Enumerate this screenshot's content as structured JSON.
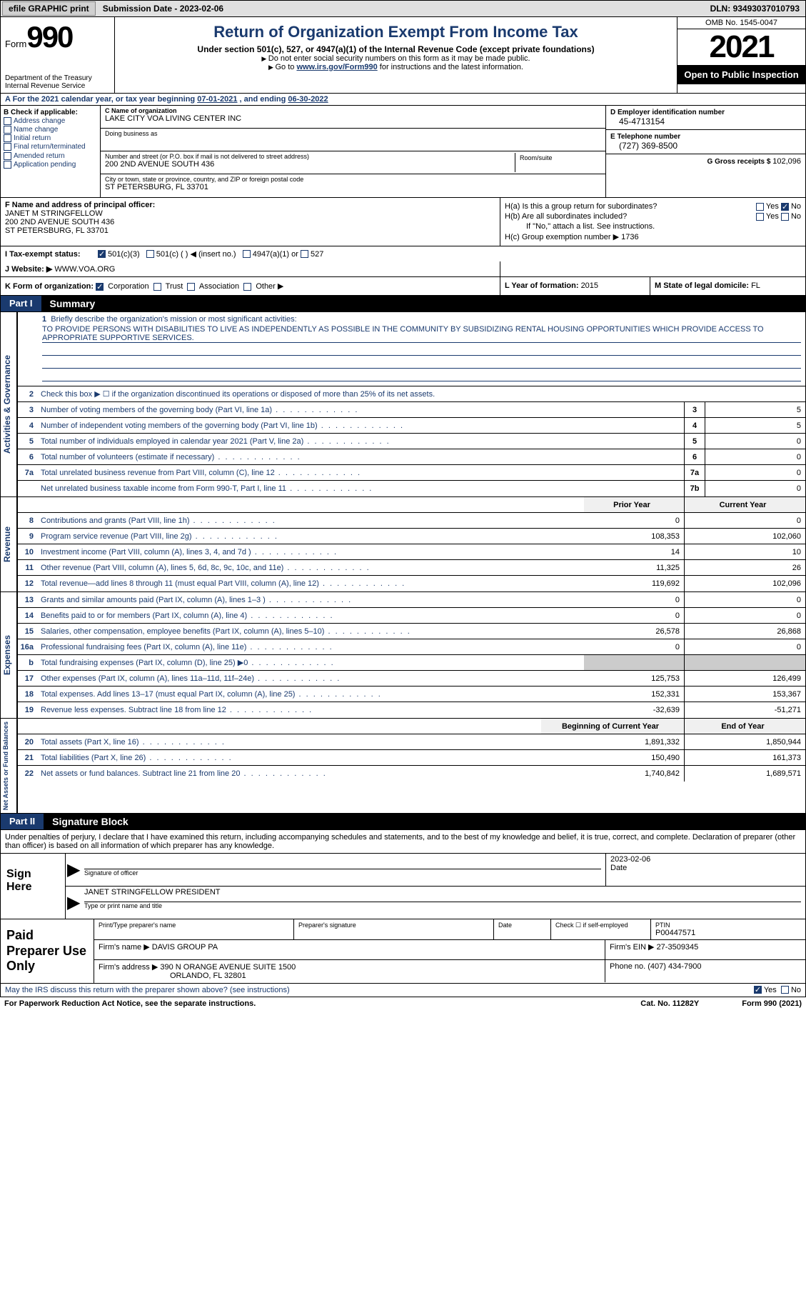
{
  "topbar": {
    "efile": "efile GRAPHIC print",
    "submission_label": "Submission Date - ",
    "submission_date": "2023-02-06",
    "dln_label": "DLN: ",
    "dln": "93493037010793"
  },
  "header": {
    "form_label": "Form",
    "form_num": "990",
    "dept": "Department of the Treasury\nInternal Revenue Service",
    "title": "Return of Organization Exempt From Income Tax",
    "sub1": "Under section 501(c), 527, or 4947(a)(1) of the Internal Revenue Code (except private foundations)",
    "sub2": "Do not enter social security numbers on this form as it may be made public.",
    "sub3_pre": "Go to ",
    "sub3_link": "www.irs.gov/Form990",
    "sub3_post": " for instructions and the latest information.",
    "omb": "OMB No. 1545-0047",
    "year": "2021",
    "open": "Open to Public Inspection"
  },
  "line_a": {
    "text": "A For the 2021 calendar year, or tax year beginning ",
    "begin": "07-01-2021",
    "mid": "   , and ending ",
    "end": "06-30-2022"
  },
  "col_b": {
    "label": "B Check if applicable:",
    "opts": [
      "Address change",
      "Name change",
      "Initial return",
      "Final return/terminated",
      "Amended return",
      "Application pending"
    ]
  },
  "col_c": {
    "name_lbl": "C Name of organization",
    "name": "LAKE CITY VOA LIVING CENTER INC",
    "dba_lbl": "Doing business as",
    "dba": "",
    "addr_lbl": "Number and street (or P.O. box if mail is not delivered to street address)",
    "addr": "200 2ND AVENUE SOUTH 436",
    "room_lbl": "Room/suite",
    "room": "",
    "city_lbl": "City or town, state or province, country, and ZIP or foreign postal code",
    "city": "ST PETERSBURG, FL  33701"
  },
  "col_d": {
    "ein_lbl": "D Employer identification number",
    "ein": "45-4713154",
    "phone_lbl": "E Telephone number",
    "phone": "(727) 369-8500",
    "gross_lbl": "G Gross receipts $ ",
    "gross": "102,096"
  },
  "line_f": {
    "lbl": "F Name and address of principal officer:",
    "name": "JANET M STRINGFELLOW",
    "addr1": "200 2ND AVENUE SOUTH 436",
    "addr2": "ST PETERSBURG, FL  33701"
  },
  "line_h": {
    "ha": "H(a)  Is this a group return for subordinates?",
    "hb": "H(b)  Are all subordinates included?",
    "hb_note": "If \"No,\" attach a list. See instructions.",
    "hc": "H(c)  Group exemption number ▶",
    "hc_val": "1736",
    "yes": "Yes",
    "no": "No"
  },
  "line_i": {
    "lbl": "I   Tax-exempt status:",
    "o1": "501(c)(3)",
    "o2": "501(c) (  ) ◀ (insert no.)",
    "o3": "4947(a)(1) or",
    "o4": "527"
  },
  "line_j": {
    "lbl": "J   Website: ▶",
    "val": "WWW.VOA.ORG"
  },
  "line_k": {
    "lbl": "K Form of organization:",
    "o1": "Corporation",
    "o2": "Trust",
    "o3": "Association",
    "o4": "Other ▶"
  },
  "line_l": {
    "lbl": "L Year of formation: ",
    "val": "2015"
  },
  "line_m": {
    "lbl": "M State of legal domicile: ",
    "val": "FL"
  },
  "part1": {
    "label": "Part I",
    "title": "Summary"
  },
  "summary": {
    "q1_lbl": "Briefly describe the organization's mission or most significant activities:",
    "q1_val": "TO PROVIDE PERSONS WITH DISABILITIES TO LIVE AS INDEPENDENTLY AS POSSIBLE IN THE COMMUNITY BY SUBSIDIZING RENTAL HOUSING OPPORTUNITIES WHICH PROVIDE ACCESS TO APPROPRIATE SUPPORTIVE SERVICES.",
    "q2": "Check this box ▶ ☐  if the organization discontinued its operations or disposed of more than 25% of its net assets.",
    "lines_top": [
      {
        "n": "3",
        "d": "Number of voting members of the governing body (Part VI, line 1a)",
        "b": "3",
        "v": "5"
      },
      {
        "n": "4",
        "d": "Number of independent voting members of the governing body (Part VI, line 1b)",
        "b": "4",
        "v": "5"
      },
      {
        "n": "5",
        "d": "Total number of individuals employed in calendar year 2021 (Part V, line 2a)",
        "b": "5",
        "v": "0"
      },
      {
        "n": "6",
        "d": "Total number of volunteers (estimate if necessary)",
        "b": "6",
        "v": "0"
      },
      {
        "n": "7a",
        "d": "Total unrelated business revenue from Part VIII, column (C), line 12",
        "b": "7a",
        "v": "0"
      },
      {
        "n": "",
        "d": "Net unrelated business taxable income from Form 990-T, Part I, line 11",
        "b": "7b",
        "v": "0"
      }
    ],
    "col_hdr_prior": "Prior Year",
    "col_hdr_curr": "Current Year",
    "revenue": [
      {
        "n": "8",
        "d": "Contributions and grants (Part VIII, line 1h)",
        "p": "0",
        "c": "0"
      },
      {
        "n": "9",
        "d": "Program service revenue (Part VIII, line 2g)",
        "p": "108,353",
        "c": "102,060"
      },
      {
        "n": "10",
        "d": "Investment income (Part VIII, column (A), lines 3, 4, and 7d )",
        "p": "14",
        "c": "10"
      },
      {
        "n": "11",
        "d": "Other revenue (Part VIII, column (A), lines 5, 6d, 8c, 9c, 10c, and 11e)",
        "p": "11,325",
        "c": "26"
      },
      {
        "n": "12",
        "d": "Total revenue—add lines 8 through 11 (must equal Part VIII, column (A), line 12)",
        "p": "119,692",
        "c": "102,096"
      }
    ],
    "expenses": [
      {
        "n": "13",
        "d": "Grants and similar amounts paid (Part IX, column (A), lines 1–3 )",
        "p": "0",
        "c": "0"
      },
      {
        "n": "14",
        "d": "Benefits paid to or for members (Part IX, column (A), line 4)",
        "p": "0",
        "c": "0"
      },
      {
        "n": "15",
        "d": "Salaries, other compensation, employee benefits (Part IX, column (A), lines 5–10)",
        "p": "26,578",
        "c": "26,868"
      },
      {
        "n": "16a",
        "d": "Professional fundraising fees (Part IX, column (A), line 11e)",
        "p": "0",
        "c": "0"
      },
      {
        "n": "b",
        "d": "Total fundraising expenses (Part IX, column (D), line 25) ▶0",
        "p": "",
        "c": "",
        "shaded": true
      },
      {
        "n": "17",
        "d": "Other expenses (Part IX, column (A), lines 11a–11d, 11f–24e)",
        "p": "125,753",
        "c": "126,499"
      },
      {
        "n": "18",
        "d": "Total expenses. Add lines 13–17 (must equal Part IX, column (A), line 25)",
        "p": "152,331",
        "c": "153,367"
      },
      {
        "n": "19",
        "d": "Revenue less expenses. Subtract line 18 from line 12",
        "p": "-32,639",
        "c": "-51,271"
      }
    ],
    "col_hdr_begin": "Beginning of Current Year",
    "col_hdr_end": "End of Year",
    "netassets": [
      {
        "n": "20",
        "d": "Total assets (Part X, line 16)",
        "p": "1,891,332",
        "c": "1,850,944"
      },
      {
        "n": "21",
        "d": "Total liabilities (Part X, line 26)",
        "p": "150,490",
        "c": "161,373"
      },
      {
        "n": "22",
        "d": "Net assets or fund balances. Subtract line 21 from line 20",
        "p": "1,740,842",
        "c": "1,689,571"
      }
    ],
    "vlabels": {
      "ag": "Activities & Governance",
      "rev": "Revenue",
      "exp": "Expenses",
      "na": "Net Assets or\nFund Balances"
    }
  },
  "part2": {
    "label": "Part II",
    "title": "Signature Block"
  },
  "sig": {
    "intro": "Under penalties of perjury, I declare that I have examined this return, including accompanying schedules and statements, and to the best of my knowledge and belief, it is true, correct, and complete. Declaration of preparer (other than officer) is based on all information of which preparer has any knowledge.",
    "sign_here": "Sign Here",
    "sig_officer_lbl": "Signature of officer",
    "date_lbl": "Date",
    "date_val": "2023-02-06",
    "name_title": "JANET STRINGFELLOW  PRESIDENT",
    "name_title_lbl": "Type or print name and title"
  },
  "prep": {
    "title": "Paid Preparer Use Only",
    "name_lbl": "Print/Type preparer's name",
    "name": "",
    "sig_lbl": "Preparer's signature",
    "date_lbl": "Date",
    "check_lbl": "Check ☐ if self-employed",
    "ptin_lbl": "PTIN",
    "ptin": "P00447571",
    "firm_name_lbl": "Firm's name    ▶",
    "firm_name": "DAVIS GROUP PA",
    "firm_ein_lbl": "Firm's EIN ▶",
    "firm_ein": "27-3509345",
    "firm_addr_lbl": "Firm's address ▶",
    "firm_addr1": "390 N ORANGE AVENUE SUITE 1500",
    "firm_addr2": "ORLANDO, FL  32801",
    "phone_lbl": "Phone no. ",
    "phone": "(407) 434-7900"
  },
  "footer": {
    "discuss": "May the IRS discuss this return with the preparer shown above? (see instructions)",
    "yes": "Yes",
    "no": "No",
    "pra": "For Paperwork Reduction Act Notice, see the separate instructions.",
    "cat": "Cat. No. 11282Y",
    "form": "Form 990 (2021)"
  },
  "colors": {
    "blue": "#1a3a6e",
    "black": "#000000",
    "gray_bg": "#e0e0e0",
    "shaded": "#cccccc"
  }
}
